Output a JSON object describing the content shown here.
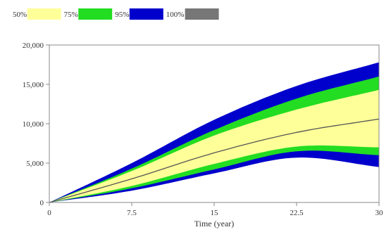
{
  "chart_data": {
    "type": "area",
    "xlabel": "Time (year)",
    "ylabel": "",
    "xlim": [
      0,
      30
    ],
    "ylim": [
      0,
      20000
    ],
    "x_ticks": [
      0,
      7.5,
      15,
      22.5,
      30
    ],
    "x_tick_labels": [
      "0",
      "7.5",
      "15",
      "22.5",
      "30"
    ],
    "y_ticks": [
      0,
      5000,
      10000,
      15000,
      20000
    ],
    "y_tick_labels": [
      "0",
      "5,000",
      "10,000",
      "15,000",
      "20,000"
    ],
    "grid": false,
    "legend_position": "top-left",
    "legend": [
      {
        "label": "50%",
        "color": "#ffff99"
      },
      {
        "label": "75%",
        "color": "#22dd22"
      },
      {
        "label": "95%",
        "color": "#0000cc"
      },
      {
        "label": "100%",
        "color": "#777777"
      }
    ],
    "x": [
      0,
      7.5,
      15,
      22.5,
      30
    ],
    "bands": [
      {
        "name": "100%",
        "color": "#0000cc",
        "lower": [
          0,
          1500,
          3700,
          5700,
          4500
        ],
        "upper": [
          0,
          5000,
          10500,
          14800,
          17800
        ]
      },
      {
        "name": "95%",
        "color": "#22dd22",
        "lower": [
          0,
          1800,
          4200,
          6500,
          6000
        ],
        "upper": [
          0,
          4300,
          9200,
          13200,
          16000
        ]
      },
      {
        "name": "75%",
        "color": "#ffff99",
        "lower": [
          0,
          2100,
          4900,
          7100,
          7000
        ],
        "upper": [
          0,
          4000,
          8500,
          11800,
          14300
        ]
      }
    ],
    "series": [
      {
        "color": "#555555",
        "values": [
          0,
          3000,
          6300,
          8900,
          10600
        ]
      }
    ]
  }
}
